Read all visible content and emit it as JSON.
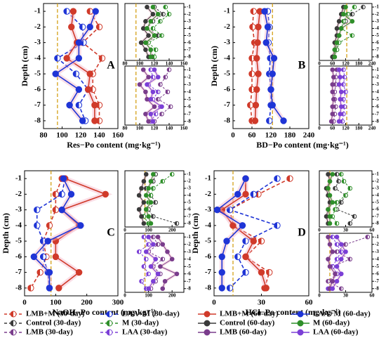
{
  "legend": [
    {
      "name": "LMB+M (30-day)",
      "color": "#d03a2a",
      "line": "dashed"
    },
    {
      "name": "LAA+M (30-day)",
      "color": "#1f35d6",
      "line": "dashed"
    },
    {
      "name": "LMB+M (60-day)",
      "color": "#d03a2a",
      "line": "solid"
    },
    {
      "name": "LAA+M (60-day)",
      "color": "#1f35d6",
      "line": "solid"
    },
    {
      "name": "Control (30-day)",
      "color": "#3a3a3a",
      "line": "dashed"
    },
    {
      "name": "M (30-day)",
      "color": "#2f8f2a",
      "line": "dashed"
    },
    {
      "name": "Control (60-day)",
      "color": "#3a3a3a",
      "line": "solid"
    },
    {
      "name": "M (60-day)",
      "color": "#2f8f2a",
      "line": "solid"
    },
    {
      "name": "LMB (30-day)",
      "color": "#7a3d8c",
      "line": "dashed"
    },
    {
      "name": "LAA (30-day)",
      "color": "#7b3fd6",
      "line": "dashed"
    },
    {
      "name": "LMB (60-day)",
      "color": "#7a3d8c",
      "line": "solid"
    },
    {
      "name": "LAA (60-day)",
      "color": "#7b3fd6",
      "line": "solid"
    }
  ],
  "chart_data": [
    {
      "type": "line",
      "label": "A",
      "xlabel": "Res−Po content (mg·kg⁻¹)",
      "ylabel": "Depth (cm)",
      "xlim": [
        80,
        160
      ],
      "xticks": [
        80,
        100,
        120,
        140,
        160
      ],
      "ylim": [
        -8.5,
        -0.5
      ],
      "yticks": [
        -1,
        -2,
        -3,
        -4,
        -5,
        -6,
        -7,
        -8
      ],
      "y": [
        -1,
        -2,
        -3,
        -4,
        -5,
        -6,
        -7,
        -8
      ],
      "reference": 95,
      "series": [
        {
          "values": [
            130,
            140,
            122,
            143,
            133,
            133,
            140,
            140
          ]
        },
        {
          "values": [
            105,
            122,
            123,
            95,
            115,
            128,
            118,
            125
          ]
        },
        {
          "values": [
            112,
            110,
            116,
            105,
            130,
            128,
            135,
            135
          ]
        },
        {
          "values": [
            136,
            130,
            118,
            118,
            93,
            118,
            108,
            122
          ]
        }
      ],
      "insets": [
        {
          "xlim": [
            80,
            160
          ],
          "xticks": [
            80,
            100,
            120,
            140,
            160
          ],
          "series": [
            {
              "values": [
                120,
                132,
                118,
                110,
                125,
                108,
                115,
                118
              ]
            },
            {
              "values": [
                135,
                140,
                128,
                118,
                130,
                112,
                122,
                120
              ]
            },
            {
              "values": [
                110,
                118,
                108,
                105,
                112,
                102,
                108,
                112
              ]
            },
            {
              "values": [
                118,
                125,
                115,
                110,
                120,
                108,
                115,
                115
              ]
            }
          ]
        },
        {
          "xlim": [
            80,
            160
          ],
          "xticks": [
            80,
            100,
            120,
            140,
            160
          ],
          "series": [
            {
              "values": [
                140,
                135,
                128,
                138,
                125,
                142,
                130,
                120
              ]
            },
            {
              "values": [
                115,
                118,
                112,
                125,
                118,
                128,
                122,
                115
              ]
            },
            {
              "values": [
                105,
                112,
                100,
                108,
                110,
                120,
                108,
                112
              ]
            },
            {
              "values": [
                120,
                125,
                110,
                118,
                115,
                130,
                115,
                118
              ]
            }
          ]
        }
      ]
    },
    {
      "type": "line",
      "label": "B",
      "xlabel": "BD−Po content (mg·kg⁻¹)",
      "ylabel": "Depth (cm)",
      "xlim": [
        0,
        240
      ],
      "xticks": [
        0,
        60,
        120,
        180,
        240
      ],
      "ylim": [
        -8.5,
        -0.5
      ],
      "yticks": [
        -1,
        -2,
        -3,
        -4,
        -5,
        -6,
        -7,
        -8
      ],
      "y": [
        -1,
        -2,
        -3,
        -4,
        -5,
        -6,
        -7,
        -8
      ],
      "reference": 125,
      "series": [
        {
          "values": [
            65,
            62,
            68,
            60,
            60,
            60,
            55,
            60
          ]
        },
        {
          "values": [
            110,
            115,
            112,
            118,
            115,
            120,
            120,
            115
          ]
        },
        {
          "values": [
            85,
            80,
            78,
            75,
            80,
            75,
            72,
            70
          ]
        },
        {
          "values": [
            100,
            110,
            105,
            130,
            125,
            120,
            125,
            160
          ]
        }
      ],
      "insets": [
        {
          "xlim": [
            0,
            240
          ],
          "xticks": [
            0,
            60,
            120,
            180,
            240
          ],
          "series": [
            {
              "values": [
                200,
                150,
                120,
                100,
                90,
                80,
                80,
                60
              ]
            },
            {
              "values": [
                160,
                130,
                110,
                100,
                150,
                90,
                80,
                70
              ]
            },
            {
              "values": [
                110,
                100,
                90,
                80,
                80,
                70,
                70,
                60
              ]
            },
            {
              "values": [
                120,
                110,
                150,
                100,
                90,
                80,
                70,
                70
              ]
            }
          ]
        },
        {
          "xlim": [
            0,
            240
          ],
          "xticks": [
            0,
            60,
            120,
            180,
            240
          ],
          "series": [
            {
              "values": [
                80,
                75,
                75,
                70,
                70,
                75,
                70,
                65
              ]
            },
            {
              "values": [
                110,
                115,
                110,
                120,
                110,
                115,
                110,
                105
              ]
            },
            {
              "values": [
                60,
                65,
                60,
                60,
                65,
                60,
                60,
                55
              ]
            },
            {
              "values": [
                90,
                95,
                90,
                100,
                95,
                100,
                95,
                90
              ]
            }
          ]
        }
      ]
    },
    {
      "type": "line",
      "label": "C",
      "xlabel": "NaOH−Po content (mg·kg⁻¹)",
      "ylabel": "Depth (cm)",
      "xlim": [
        0,
        300
      ],
      "xticks": [
        0,
        100,
        200,
        300
      ],
      "ylim": [
        -8.5,
        -0.5
      ],
      "yticks": [
        -1,
        -2,
        -3,
        -4,
        -5,
        -6,
        -7,
        -8
      ],
      "y": [
        -1,
        -2,
        -3,
        -4,
        -5,
        -6,
        -7,
        -8
      ],
      "reference": 85,
      "series": [
        {
          "values": [
            120,
            100,
            100,
            80,
            60,
            70,
            50,
            20
          ]
        },
        {
          "values": [
            130,
            120,
            40,
            40,
            60,
            60,
            75,
            80
          ]
        },
        {
          "values": [
            130,
            260,
            120,
            175,
            100,
            100,
            175,
            110
          ]
        },
        {
          "values": [
            125,
            150,
            120,
            180,
            75,
            30,
            80,
            80
          ]
        }
      ],
      "insets": [
        {
          "xlim": [
            0,
            250
          ],
          "xticks": [
            0,
            100,
            200
          ],
          "series": [
            {
              "values": [
                130,
                120,
                90,
                110,
                130,
                100,
                120,
                220
              ]
            },
            {
              "values": [
                200,
                160,
                120,
                110,
                100,
                90,
                80,
                100
              ]
            },
            {
              "values": [
                90,
                80,
                70,
                60,
                80,
                60,
                70,
                80
              ]
            },
            {
              "values": [
                120,
                110,
                100,
                90,
                110,
                90,
                100,
                110
              ]
            }
          ]
        },
        {
          "xlim": [
            0,
            250
          ],
          "xticks": [
            0,
            100,
            200
          ],
          "series": [
            {
              "values": [
                120,
                140,
                100,
                160,
                120,
                150,
                130,
                110
              ]
            },
            {
              "values": [
                80,
                100,
                60,
                90,
                80,
                100,
                70,
                90
              ]
            },
            {
              "values": [
                140,
                160,
                180,
                200,
                150,
                220,
                170,
                160
              ]
            },
            {
              "values": [
                100,
                120,
                90,
                130,
                110,
                140,
                120,
                100
              ]
            }
          ]
        }
      ]
    },
    {
      "type": "line",
      "label": "D",
      "xlabel": "HCl−Po content (mg·kg⁻¹)",
      "ylabel": "Depth (cm)",
      "xlim": [
        0,
        60
      ],
      "xticks": [
        0,
        30,
        60
      ],
      "ylim": [
        -8.5,
        -0.5
      ],
      "yticks": [
        -1,
        -2,
        -3,
        -4,
        -5,
        -6,
        -7,
        -8
      ],
      "y": [
        -1,
        -2,
        -3,
        -4,
        -5,
        -6,
        -7,
        -8
      ],
      "reference": 12,
      "series": [
        {
          "values": [
            48,
            28,
            10,
            12,
            30,
            20,
            35,
            32
          ]
        },
        {
          "values": [
            40,
            25,
            10,
            40,
            20,
            15,
            20,
            10
          ]
        },
        {
          "values": [
            20,
            20,
            5,
            12,
            25,
            20,
            30,
            33
          ]
        },
        {
          "values": [
            20,
            15,
            2,
            18,
            8,
            5,
            5,
            5
          ]
        }
      ],
      "insets": [
        {
          "xlim": [
            0,
            60
          ],
          "xticks": [
            0,
            30,
            60
          ],
          "series": [
            {
              "values": [
                20,
                22,
                18,
                30,
                25,
                20,
                40,
                35
              ]
            },
            {
              "values": [
                25,
                28,
                35,
                30,
                20,
                18,
                15,
                20
              ]
            },
            {
              "values": [
                10,
                12,
                8,
                10,
                12,
                10,
                8,
                10
              ]
            },
            {
              "values": [
                15,
                12,
                10,
                12,
                15,
                10,
                12,
                12
              ]
            }
          ]
        },
        {
          "xlim": [
            0,
            60
          ],
          "xticks": [
            0,
            30,
            60
          ],
          "series": [
            {
              "values": [
                55,
                30,
                20,
                35,
                15,
                20,
                10,
                25
              ]
            },
            {
              "values": [
                15,
                20,
                25,
                20,
                15,
                20,
                15,
                10
              ]
            },
            {
              "values": [
                10,
                12,
                15,
                10,
                12,
                18,
                15,
                12
              ]
            },
            {
              "values": [
                20,
                25,
                30,
                25,
                20,
                25,
                20,
                15
              ]
            }
          ]
        }
      ]
    }
  ]
}
